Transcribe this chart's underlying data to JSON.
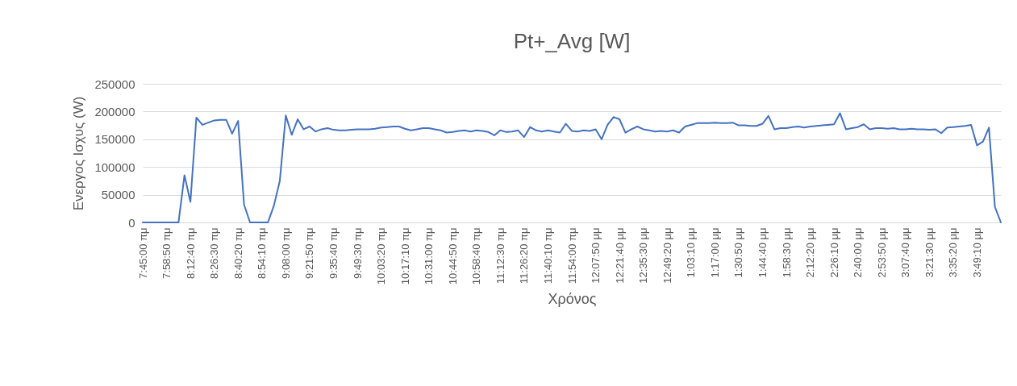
{
  "chart_data": {
    "type": "line",
    "title": "Pt+_Avg [W]",
    "xlabel": "Χρόνος",
    "ylabel": "Ενεργος Ισχυς (W)",
    "categories": [
      "7:45:00 πμ",
      null,
      null,
      null,
      "7:58:50 πμ",
      null,
      null,
      null,
      "8:12:40 πμ",
      null,
      null,
      null,
      "8:26:30 πμ",
      null,
      null,
      null,
      "8:40:20 πμ",
      null,
      null,
      null,
      "8:54:10 πμ",
      null,
      null,
      null,
      "9:08:00 πμ",
      null,
      null,
      null,
      "9:21:50 πμ",
      null,
      null,
      null,
      "9:35:40 πμ",
      null,
      null,
      null,
      "9:49:30 πμ",
      null,
      null,
      null,
      "10:03:20 πμ",
      null,
      null,
      null,
      "10:17:10 πμ",
      null,
      null,
      null,
      "10:31:00 πμ",
      null,
      null,
      null,
      "10:44:50 πμ",
      null,
      null,
      null,
      "10:58:40 πμ",
      null,
      null,
      null,
      "11:12:30 πμ",
      null,
      null,
      null,
      "11:26:20 πμ",
      null,
      null,
      null,
      "11:40:10 πμ",
      null,
      null,
      null,
      "11:54:00 πμ",
      null,
      null,
      null,
      "12:07:50 μμ",
      null,
      null,
      null,
      "12:21:40 μμ",
      null,
      null,
      null,
      "12:35:30 μμ",
      null,
      null,
      null,
      "12:49:20 μμ",
      null,
      null,
      null,
      "1:03:10 μμ",
      null,
      null,
      null,
      "1:17:00 μμ",
      null,
      null,
      null,
      "1:30:50 μμ",
      null,
      null,
      null,
      "1:44:40 μμ",
      null,
      null,
      null,
      "1:58:30 μμ",
      null,
      null,
      null,
      "2:12:20 μμ",
      null,
      null,
      null,
      "2:26:10 μμ",
      null,
      null,
      null,
      "2:40:00 μμ",
      null,
      null,
      null,
      "2:53:50 μμ",
      null,
      null,
      null,
      "3:07:40 μμ",
      null,
      null,
      null,
      "3:21:30 μμ",
      null,
      null,
      null,
      "3:35:20 μμ",
      null,
      null,
      null,
      "3:49:10 μμ",
      null,
      null,
      null,
      null
    ],
    "series": [
      {
        "color": "#4472c4",
        "values": [
          0,
          0,
          0,
          0,
          0,
          0,
          0,
          85000,
          37000,
          189000,
          176000,
          180000,
          184000,
          185000,
          185000,
          160000,
          183000,
          32000,
          0,
          0,
          0,
          0,
          30000,
          75000,
          193000,
          158000,
          186000,
          168000,
          173000,
          164000,
          168000,
          170000,
          167000,
          166000,
          166000,
          167000,
          168000,
          168000,
          168000,
          169000,
          171000,
          172000,
          173000,
          173000,
          169000,
          166000,
          168000,
          170000,
          170000,
          168000,
          166000,
          162000,
          163000,
          165000,
          166000,
          164000,
          166000,
          165000,
          163000,
          157000,
          166000,
          163000,
          164000,
          166000,
          154000,
          172000,
          166000,
          164000,
          166000,
          164000,
          162000,
          178000,
          165000,
          164000,
          166000,
          165000,
          168000,
          150000,
          176000,
          190000,
          186000,
          162000,
          168000,
          173000,
          168000,
          166000,
          164000,
          165000,
          164000,
          166000,
          162000,
          173000,
          176000,
          179000,
          179000,
          179000,
          180000,
          179000,
          179000,
          180000,
          175000,
          175000,
          174000,
          174000,
          178000,
          192000,
          168000,
          170000,
          170000,
          172000,
          173000,
          171000,
          173000,
          174000,
          175000,
          176000,
          177000,
          197000,
          168000,
          170000,
          172000,
          177000,
          168000,
          170000,
          170000,
          169000,
          170000,
          168000,
          168000,
          169000,
          168000,
          168000,
          167000,
          168000,
          161000,
          171000,
          172000,
          173000,
          174000,
          176000,
          139000,
          146000,
          171000,
          28000,
          0
        ]
      }
    ],
    "ylim": [
      0,
      250000
    ],
    "yticks": [
      0,
      50000,
      100000,
      150000,
      200000,
      250000
    ],
    "grid": "y",
    "line_style": "solid"
  }
}
